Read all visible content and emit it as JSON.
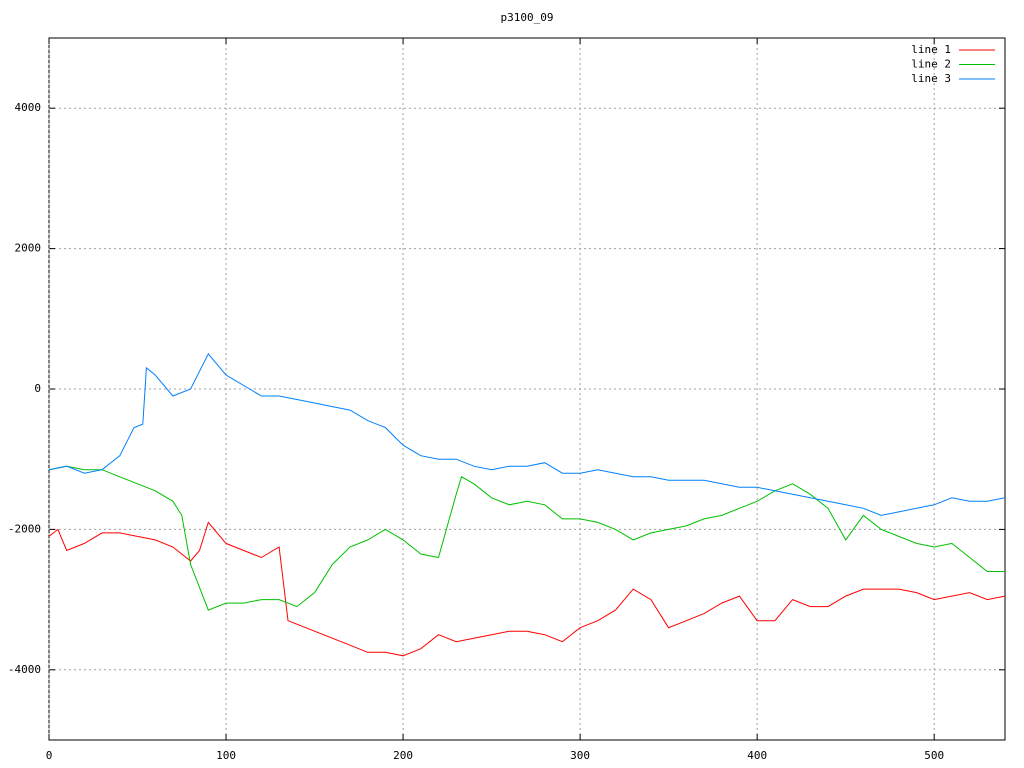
{
  "chart_data": {
    "type": "line",
    "title": "p3100_09",
    "xlim": [
      0,
      540
    ],
    "xticks": [
      0,
      100,
      200,
      300,
      400,
      500
    ],
    "ylim": [
      -5000,
      5000
    ],
    "yticks": [
      -4000,
      -2000,
      0,
      2000,
      4000
    ],
    "grid": true,
    "legend": "top-right",
    "series": [
      {
        "name": "line 1",
        "color": "#ff0000",
        "x": [
          0,
          5,
          10,
          20,
          30,
          40,
          50,
          60,
          70,
          80,
          85,
          90,
          100,
          110,
          120,
          130,
          135,
          140,
          150,
          160,
          170,
          180,
          190,
          200,
          210,
          220,
          230,
          240,
          250,
          260,
          270,
          280,
          290,
          300,
          310,
          320,
          330,
          340,
          350,
          360,
          370,
          380,
          390,
          400,
          410,
          420,
          430,
          440,
          450,
          460,
          470,
          480,
          490,
          500,
          510,
          520,
          530,
          540
        ],
        "values": [
          -2100,
          -2000,
          -2300,
          -2200,
          -2050,
          -2050,
          -2100,
          -2150,
          -2250,
          -2450,
          -2300,
          -1900,
          -2200,
          -2300,
          -2400,
          -2250,
          -3300,
          -3350,
          -3450,
          -3550,
          -3650,
          -3750,
          -3750,
          -3800,
          -3700,
          -3500,
          -3600,
          -3550,
          -3500,
          -3450,
          -3450,
          -3500,
          -3600,
          -3400,
          -3300,
          -3150,
          -2850,
          -3000,
          -3400,
          -3300,
          -3200,
          -3050,
          -2950,
          -3300,
          -3300,
          -3000,
          -3100,
          -3100,
          -2950,
          -2850,
          -2850,
          -2850,
          -2900,
          -3000,
          -2950,
          -2900,
          -3000,
          -2950
        ]
      },
      {
        "name": "line 2",
        "color": "#00c000",
        "x": [
          0,
          10,
          20,
          30,
          40,
          50,
          60,
          70,
          75,
          80,
          90,
          100,
          110,
          120,
          130,
          140,
          150,
          160,
          170,
          180,
          190,
          200,
          210,
          220,
          230,
          233,
          240,
          250,
          260,
          270,
          280,
          290,
          300,
          310,
          320,
          330,
          340,
          350,
          360,
          370,
          380,
          390,
          400,
          410,
          420,
          430,
          440,
          450,
          460,
          470,
          480,
          490,
          500,
          510,
          520,
          530,
          540
        ],
        "values": [
          -1150,
          -1100,
          -1150,
          -1150,
          -1250,
          -1350,
          -1450,
          -1600,
          -1800,
          -2500,
          -3150,
          -3050,
          -3050,
          -3000,
          -3000,
          -3100,
          -2900,
          -2500,
          -2250,
          -2150,
          -2000,
          -2150,
          -2350,
          -2400,
          -1500,
          -1250,
          -1350,
          -1550,
          -1650,
          -1600,
          -1650,
          -1850,
          -1850,
          -1900,
          -2000,
          -2150,
          -2050,
          -2000,
          -1950,
          -1850,
          -1800,
          -1700,
          -1600,
          -1450,
          -1350,
          -1500,
          -1700,
          -2150,
          -1800,
          -2000,
          -2100,
          -2200,
          -2250,
          -2200,
          -2400,
          -2600,
          -2600
        ]
      },
      {
        "name": "line 3",
        "color": "#0080ff",
        "x": [
          0,
          10,
          20,
          30,
          40,
          48,
          53,
          55,
          60,
          70,
          80,
          90,
          100,
          110,
          120,
          130,
          140,
          150,
          160,
          170,
          180,
          190,
          200,
          210,
          220,
          230,
          240,
          250,
          260,
          270,
          280,
          290,
          300,
          310,
          320,
          330,
          340,
          350,
          360,
          370,
          380,
          390,
          400,
          410,
          420,
          430,
          440,
          450,
          460,
          470,
          480,
          490,
          500,
          510,
          520,
          530,
          540
        ],
        "values": [
          -1150,
          -1100,
          -1200,
          -1150,
          -950,
          -550,
          -500,
          300,
          200,
          -100,
          0,
          500,
          200,
          50,
          -100,
          -100,
          -150,
          -200,
          -250,
          -300,
          -450,
          -550,
          -800,
          -950,
          -1000,
          -1000,
          -1100,
          -1150,
          -1100,
          -1100,
          -1050,
          -1200,
          -1200,
          -1150,
          -1200,
          -1250,
          -1250,
          -1300,
          -1300,
          -1300,
          -1350,
          -1400,
          -1400,
          -1450,
          -1500,
          -1550,
          -1600,
          -1650,
          -1700,
          -1800,
          -1750,
          -1700,
          -1650,
          -1550,
          -1600,
          -1600,
          -1550
        ]
      }
    ]
  }
}
